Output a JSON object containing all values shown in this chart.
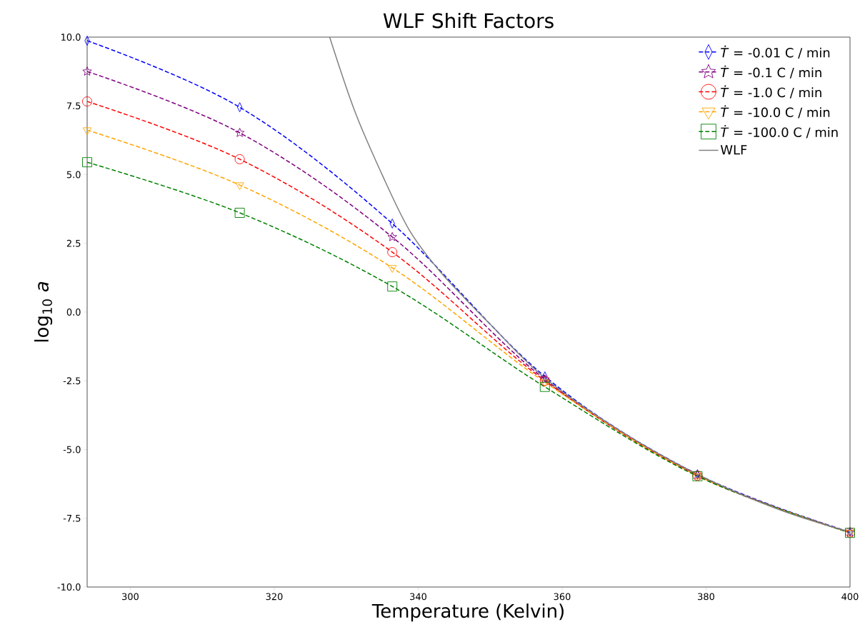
{
  "chart_data": {
    "type": "line",
    "title": "WLF Shift Factors",
    "xlabel": "Temperature (Kelvin)",
    "ylabel": "log$_{10}$ *a*",
    "xlim": [
      294,
      400
    ],
    "ylim": [
      -10,
      10
    ],
    "xticks": [
      300,
      320,
      340,
      360,
      380,
      400
    ],
    "yticks": [
      {
        "value": -10,
        "label": "-10.0"
      },
      {
        "value": -7.5,
        "label": "-7.5"
      },
      {
        "value": -5,
        "label": "-5.0"
      },
      {
        "value": -2.5,
        "label": "-2.5"
      },
      {
        "value": 0,
        "label": "0.0"
      },
      {
        "value": 2.5,
        "label": "2.5"
      },
      {
        "value": 5,
        "label": "5.0"
      },
      {
        "value": 7.5,
        "label": "7.5"
      },
      {
        "value": 10,
        "label": "10.0"
      }
    ],
    "grid": false,
    "legend": "top right",
    "series": [
      {
        "name": "*Ṫ* = -0.01 C / min",
        "color": "#0000ff",
        "marker": "diamond",
        "line_style": "dashed",
        "x": [
          294,
          315.2,
          336.4,
          357.6,
          378.8,
          400
        ],
        "values": [
          9.87,
          7.45,
          3.22,
          -2.34,
          -5.9,
          -8.0
        ]
      },
      {
        "name": "*Ṫ* = -0.1 C / min",
        "color": "#800080",
        "marker": "star",
        "line_style": "dashed",
        "x": [
          294,
          315.2,
          336.4,
          357.6,
          378.8,
          400
        ],
        "values": [
          8.75,
          6.52,
          2.73,
          -2.45,
          -5.93,
          -8.02
        ]
      },
      {
        "name": "*Ṫ* = -1.0 C / min",
        "color": "#ff0000",
        "marker": "circle",
        "line_style": "dashed",
        "x": [
          294,
          315.2,
          336.4,
          357.6,
          378.8,
          400
        ],
        "values": [
          7.66,
          5.56,
          2.18,
          -2.5,
          -5.95,
          -8.02
        ]
      },
      {
        "name": "*Ṫ* = -10.0 C / min",
        "color": "#ffa500",
        "marker": "triangle",
        "line_style": "dashed",
        "x": [
          294,
          315.2,
          336.4,
          357.6,
          378.8,
          400
        ],
        "values": [
          6.62,
          4.62,
          1.61,
          -2.55,
          -5.95,
          -8.02
        ]
      },
      {
        "name": "*Ṫ* = -100.0 C / min",
        "color": "#008000",
        "marker": "square",
        "line_style": "dashed",
        "x": [
          294,
          315.2,
          336.4,
          357.6,
          378.8,
          400
        ],
        "values": [
          5.45,
          3.61,
          0.93,
          -2.72,
          -5.97,
          -8.03
        ]
      },
      {
        "name": "WLF",
        "color": "#808080",
        "marker": "none",
        "line_style": "solid",
        "x": [
          327.7,
          331.2,
          335,
          338.7,
          342.6,
          346.4,
          350.1,
          357.6,
          368,
          378.8,
          390,
          400
        ],
        "values": [
          10,
          7.3,
          4.99,
          3.01,
          1.61,
          0.52,
          -0.47,
          -2.4,
          -4.31,
          -5.9,
          -7.17,
          -8.0
        ]
      }
    ]
  }
}
